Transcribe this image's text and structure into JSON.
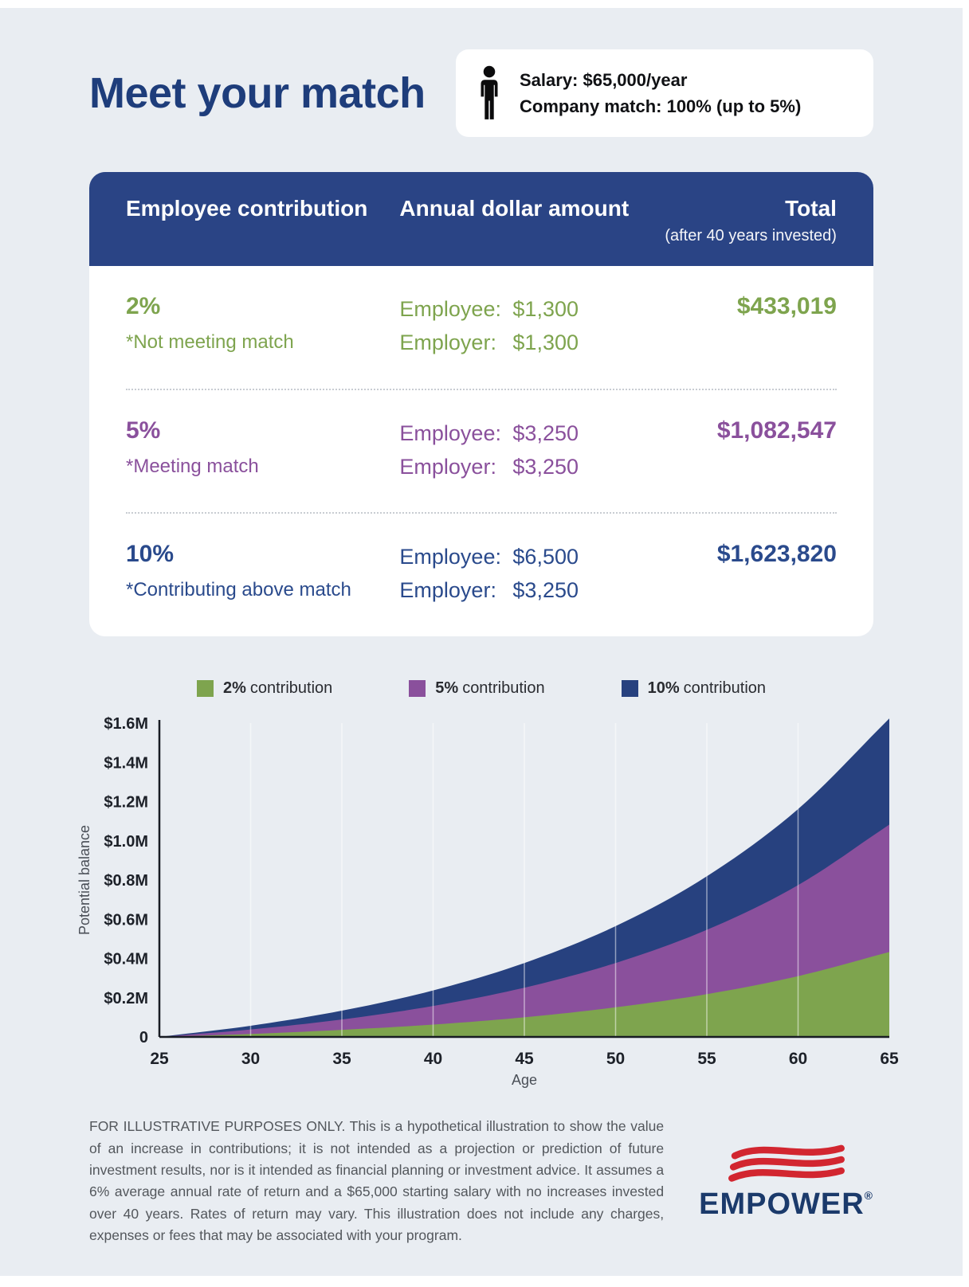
{
  "colors": {
    "background": "#e9edf2",
    "navy": "#2a4485",
    "title_navy": "#1e3d7b",
    "green": "#7ea44e",
    "purple": "#8a509c",
    "row_navy": "#2a4a8c",
    "logo_red": "#d22630",
    "logo_navy": "#1b3a6b"
  },
  "header": {
    "title": "Meet your match",
    "info_card": {
      "icon": "person-icon",
      "salary": "Salary: $65,000/year",
      "match": "Company match: 100% (up to 5%)"
    }
  },
  "table": {
    "headers": {
      "employee_contribution": "Employee contribution",
      "annual_dollar_amount": "Annual dollar amount",
      "total": "Total",
      "total_sub": "(after 40 years invested)"
    },
    "rows": [
      {
        "pct": "2%",
        "note": "*Not meeting match",
        "employee_label": "Employee:",
        "employee_amount": "$1,300",
        "employer_label": "Employer:",
        "employer_amount": "$1,300",
        "total": "$433,019",
        "color": "#7ea44e"
      },
      {
        "pct": "5%",
        "note": "*Meeting match",
        "employee_label": "Employee:",
        "employee_amount": "$3,250",
        "employer_label": "Employer:",
        "employer_amount": "$3,250",
        "total": "$1,082,547",
        "color": "#8a509c"
      },
      {
        "pct": "10%",
        "note": "*Contributing above match",
        "employee_label": "Employee:",
        "employee_amount": "$6,500",
        "employer_label": "Employer:",
        "employer_amount": "$3,250",
        "total": "$1,623,820",
        "color": "#2a4a8c"
      }
    ]
  },
  "legend": {
    "items": [
      {
        "pct": "2%",
        "label": "contribution",
        "color": "#7ea44e"
      },
      {
        "pct": "5%",
        "label": "contribution",
        "color": "#8a509c"
      },
      {
        "pct": "10%",
        "label": "contribution",
        "color": "#27417f"
      }
    ]
  },
  "chart_data": {
    "type": "area",
    "title": "",
    "xlabel": "Age",
    "ylabel": "Potential balance",
    "x": [
      25,
      30,
      35,
      40,
      45,
      50,
      55,
      60,
      65
    ],
    "xticks": [
      25,
      30,
      35,
      40,
      45,
      50,
      55,
      60,
      65
    ],
    "ylim": [
      0,
      1600000
    ],
    "yticks": [
      0,
      200000,
      400000,
      600000,
      800000,
      1000000,
      1200000,
      1400000,
      1600000
    ],
    "ytick_labels": [
      "0",
      "$0.2M",
      "$0.4M",
      "$0.6M",
      "$0.8M",
      "$1.0M",
      "$1.2M",
      "$1.4M",
      "$1.6M"
    ],
    "legend_position": "top",
    "grid": "vertical-white-inner",
    "note": "Overlaid cumulative balances; 10% drawn behind 5% behind 2%",
    "series": [
      {
        "name": "2% contribution",
        "color": "#7ea44e",
        "values": [
          0,
          15000,
          36000,
          63000,
          100000,
          151000,
          218000,
          310000,
          433019
        ]
      },
      {
        "name": "5% contribution",
        "color": "#8a509c",
        "values": [
          0,
          38000,
          89000,
          158000,
          251000,
          377000,
          546000,
          774000,
          1082547
        ]
      },
      {
        "name": "10% contribution",
        "color": "#27417f",
        "values": [
          0,
          57000,
          134000,
          237000,
          377000,
          565000,
          819000,
          1162000,
          1623820
        ]
      }
    ]
  },
  "footer": {
    "disclaimer": "FOR ILLUSTRATIVE PURPOSES ONLY. This is a hypothetical illustration to show the value of an increase in contributions; it is not intended as a projection or prediction of future investment results, nor is it intended as financial planning or investment advice. It assumes a 6% average annual rate of return and a $65,000 starting salary with no increases invested over 40 years. Rates of return may vary. This illustration does not include any charges, expenses or fees that may be associated with your program.",
    "logo_text": "EMPOWER",
    "logo_reg": "®"
  }
}
